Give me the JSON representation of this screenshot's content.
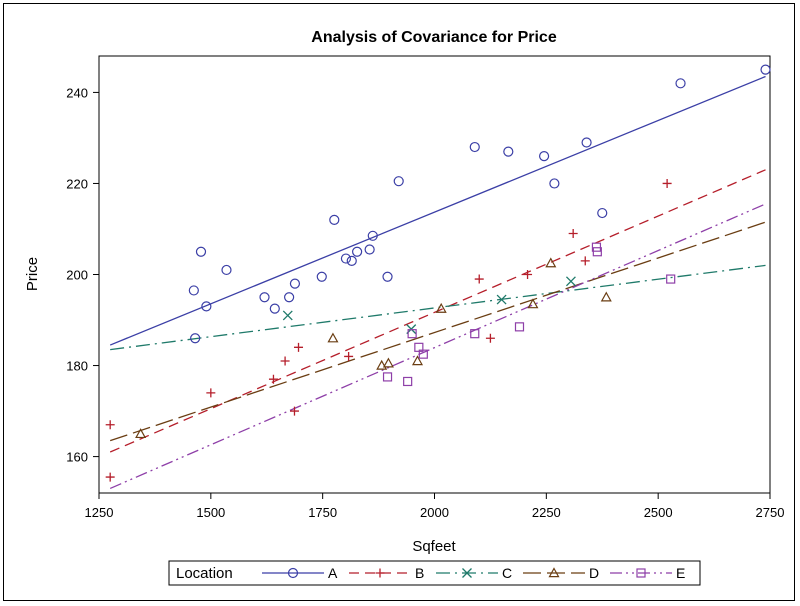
{
  "chart_data": {
    "type": "scatter",
    "title": "Analysis of Covariance for Price",
    "xlabel": "Sqfeet",
    "ylabel": "Price",
    "xlim": [
      1250,
      2750
    ],
    "ylim": [
      152,
      248
    ],
    "x_ticks": [
      1250,
      1500,
      1750,
      2000,
      2250,
      2500,
      2750
    ],
    "y_ticks": [
      160,
      180,
      200,
      220,
      240
    ],
    "grid": false,
    "legend_title": "Location",
    "legend_position": "bottom",
    "series": [
      {
        "name": "A",
        "marker": "circle",
        "color": "#3b3fa6",
        "dash": "",
        "points": [
          [
            1462,
            196.5
          ],
          [
            1465,
            186
          ],
          [
            1478,
            205
          ],
          [
            1490,
            193
          ],
          [
            1535,
            201
          ],
          [
            1620,
            195
          ],
          [
            1643,
            192.5
          ],
          [
            1675,
            195
          ],
          [
            1688,
            198
          ],
          [
            1748,
            199.5
          ],
          [
            1776,
            212
          ],
          [
            1802,
            203.5
          ],
          [
            1815,
            203
          ],
          [
            1827,
            205
          ],
          [
            1855,
            205.5
          ],
          [
            1862,
            208.5
          ],
          [
            1895,
            199.5
          ],
          [
            1920,
            220.5
          ],
          [
            2090,
            228
          ],
          [
            2165,
            227
          ],
          [
            2245,
            226
          ],
          [
            2268,
            220
          ],
          [
            2340,
            229
          ],
          [
            2375,
            213.5
          ],
          [
            2550,
            242
          ],
          [
            2740,
            245
          ]
        ],
        "fit": [
          [
            1275,
            184.5
          ],
          [
            2740,
            243.5
          ]
        ]
      },
      {
        "name": "B",
        "marker": "plus",
        "color": "#b51e2a",
        "dash": "10,6",
        "points": [
          [
            1275,
            167
          ],
          [
            1275,
            155.5
          ],
          [
            1500,
            174
          ],
          [
            1640,
            177
          ],
          [
            1666,
            181
          ],
          [
            1687,
            170
          ],
          [
            1696,
            184
          ],
          [
            1808,
            182
          ],
          [
            2100,
            199
          ],
          [
            2125,
            186
          ],
          [
            2208,
            200
          ],
          [
            2310,
            209
          ],
          [
            2337,
            203
          ],
          [
            2520,
            220
          ]
        ],
        "fit": [
          [
            1275,
            161
          ],
          [
            2740,
            223
          ]
        ]
      },
      {
        "name": "C",
        "marker": "x",
        "color": "#1f7a6a",
        "dash": "14,5,2,5",
        "points": [
          [
            1672,
            191
          ],
          [
            1948,
            188
          ],
          [
            2150,
            194.5
          ],
          [
            2305,
            198.5
          ]
        ],
        "fit": [
          [
            1275,
            183.5
          ],
          [
            2740,
            202
          ]
        ]
      },
      {
        "name": "D",
        "marker": "triangle",
        "color": "#6a3d12",
        "dash": "18,6",
        "points": [
          [
            1343,
            165
          ],
          [
            1773,
            186
          ],
          [
            1882,
            180
          ],
          [
            1897,
            180.5
          ],
          [
            1962,
            181
          ],
          [
            2015,
            192.5
          ],
          [
            2220,
            193.5
          ],
          [
            2260,
            202.5
          ],
          [
            2384,
            195
          ]
        ],
        "fit": [
          [
            1275,
            163.5
          ],
          [
            2740,
            211.5
          ]
        ]
      },
      {
        "name": "E",
        "marker": "square",
        "color": "#8e3fa8",
        "dash": "12,4,2,4,2,4",
        "points": [
          [
            1895,
            177.5
          ],
          [
            1940,
            176.5
          ],
          [
            1950,
            187
          ],
          [
            1965,
            184
          ],
          [
            1975,
            182.5
          ],
          [
            2090,
            187
          ],
          [
            2190,
            188.5
          ],
          [
            2362,
            206
          ],
          [
            2364,
            205
          ],
          [
            2528,
            199
          ]
        ],
        "fit": [
          [
            1275,
            153
          ],
          [
            2740,
            215.5
          ]
        ]
      }
    ]
  }
}
